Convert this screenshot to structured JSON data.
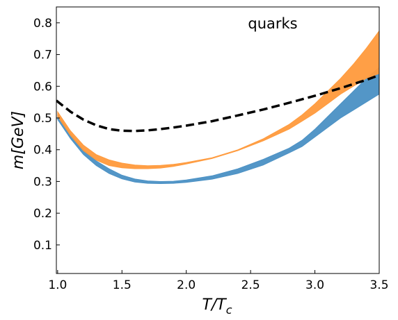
{
  "chart_data": {
    "type": "line",
    "title": "",
    "annotation": "quarks",
    "xlabel": {
      "main": "T/T",
      "sub": "c"
    },
    "ylabel": "m[GeV]",
    "xlim": [
      0.99,
      3.5
    ],
    "ylim": [
      0.01,
      0.85
    ],
    "xticks": [
      1.0,
      1.5,
      2.0,
      2.5,
      3.0,
      3.5
    ],
    "xtick_labels": [
      "1.0",
      "1.5",
      "2.0",
      "2.5",
      "3.0",
      "3.5"
    ],
    "yticks": [
      0.1,
      0.2,
      0.3,
      0.4,
      0.5,
      0.6,
      0.7,
      0.8
    ],
    "ytick_labels": [
      "0.1",
      "0.2",
      "0.3",
      "0.4",
      "0.5",
      "0.6",
      "0.7",
      "0.8"
    ],
    "grid": false,
    "series": [
      {
        "kind": "band",
        "color": "#4a90c4",
        "x": [
          1.0,
          1.1,
          1.2,
          1.3,
          1.4,
          1.5,
          1.6,
          1.7,
          1.8,
          1.9,
          2.0,
          2.2,
          2.4,
          2.6,
          2.8,
          2.9,
          3.0,
          3.1,
          3.2,
          3.3,
          3.4,
          3.5
        ],
        "upper": [
          0.51,
          0.45,
          0.4,
          0.365,
          0.34,
          0.32,
          0.308,
          0.302,
          0.3,
          0.301,
          0.305,
          0.318,
          0.34,
          0.37,
          0.405,
          0.43,
          0.465,
          0.505,
          0.545,
          0.585,
          0.625,
          0.66
        ],
        "lower": [
          0.495,
          0.435,
          0.385,
          0.35,
          0.325,
          0.308,
          0.298,
          0.294,
          0.293,
          0.294,
          0.297,
          0.307,
          0.325,
          0.352,
          0.39,
          0.41,
          0.44,
          0.47,
          0.5,
          0.525,
          0.55,
          0.575
        ]
      },
      {
        "kind": "band",
        "color": "#ff9a3c",
        "x": [
          1.0,
          1.1,
          1.2,
          1.3,
          1.4,
          1.5,
          1.6,
          1.7,
          1.8,
          1.9,
          2.0,
          2.2,
          2.4,
          2.6,
          2.8,
          2.9,
          3.0,
          3.1,
          3.2,
          3.3,
          3.4,
          3.5
        ],
        "upper": [
          0.52,
          0.46,
          0.415,
          0.385,
          0.368,
          0.358,
          0.352,
          0.35,
          0.351,
          0.354,
          0.36,
          0.375,
          0.4,
          0.435,
          0.48,
          0.51,
          0.545,
          0.585,
          0.625,
          0.67,
          0.72,
          0.775
        ],
        "lower": [
          0.505,
          0.445,
          0.397,
          0.367,
          0.35,
          0.343,
          0.34,
          0.34,
          0.342,
          0.347,
          0.355,
          0.372,
          0.397,
          0.428,
          0.465,
          0.49,
          0.515,
          0.545,
          0.575,
          0.6,
          0.625,
          0.64
        ]
      },
      {
        "kind": "line",
        "style": "dashed",
        "color": "#000000",
        "x": [
          0.99,
          1.1,
          1.2,
          1.3,
          1.4,
          1.5,
          1.6,
          1.7,
          1.8,
          1.9,
          2.0,
          2.2,
          2.4,
          2.6,
          2.8,
          3.0,
          3.2,
          3.4,
          3.5
        ],
        "y": [
          0.555,
          0.52,
          0.495,
          0.477,
          0.465,
          0.46,
          0.459,
          0.461,
          0.465,
          0.47,
          0.476,
          0.49,
          0.508,
          0.527,
          0.548,
          0.57,
          0.594,
          0.62,
          0.635
        ]
      }
    ]
  }
}
